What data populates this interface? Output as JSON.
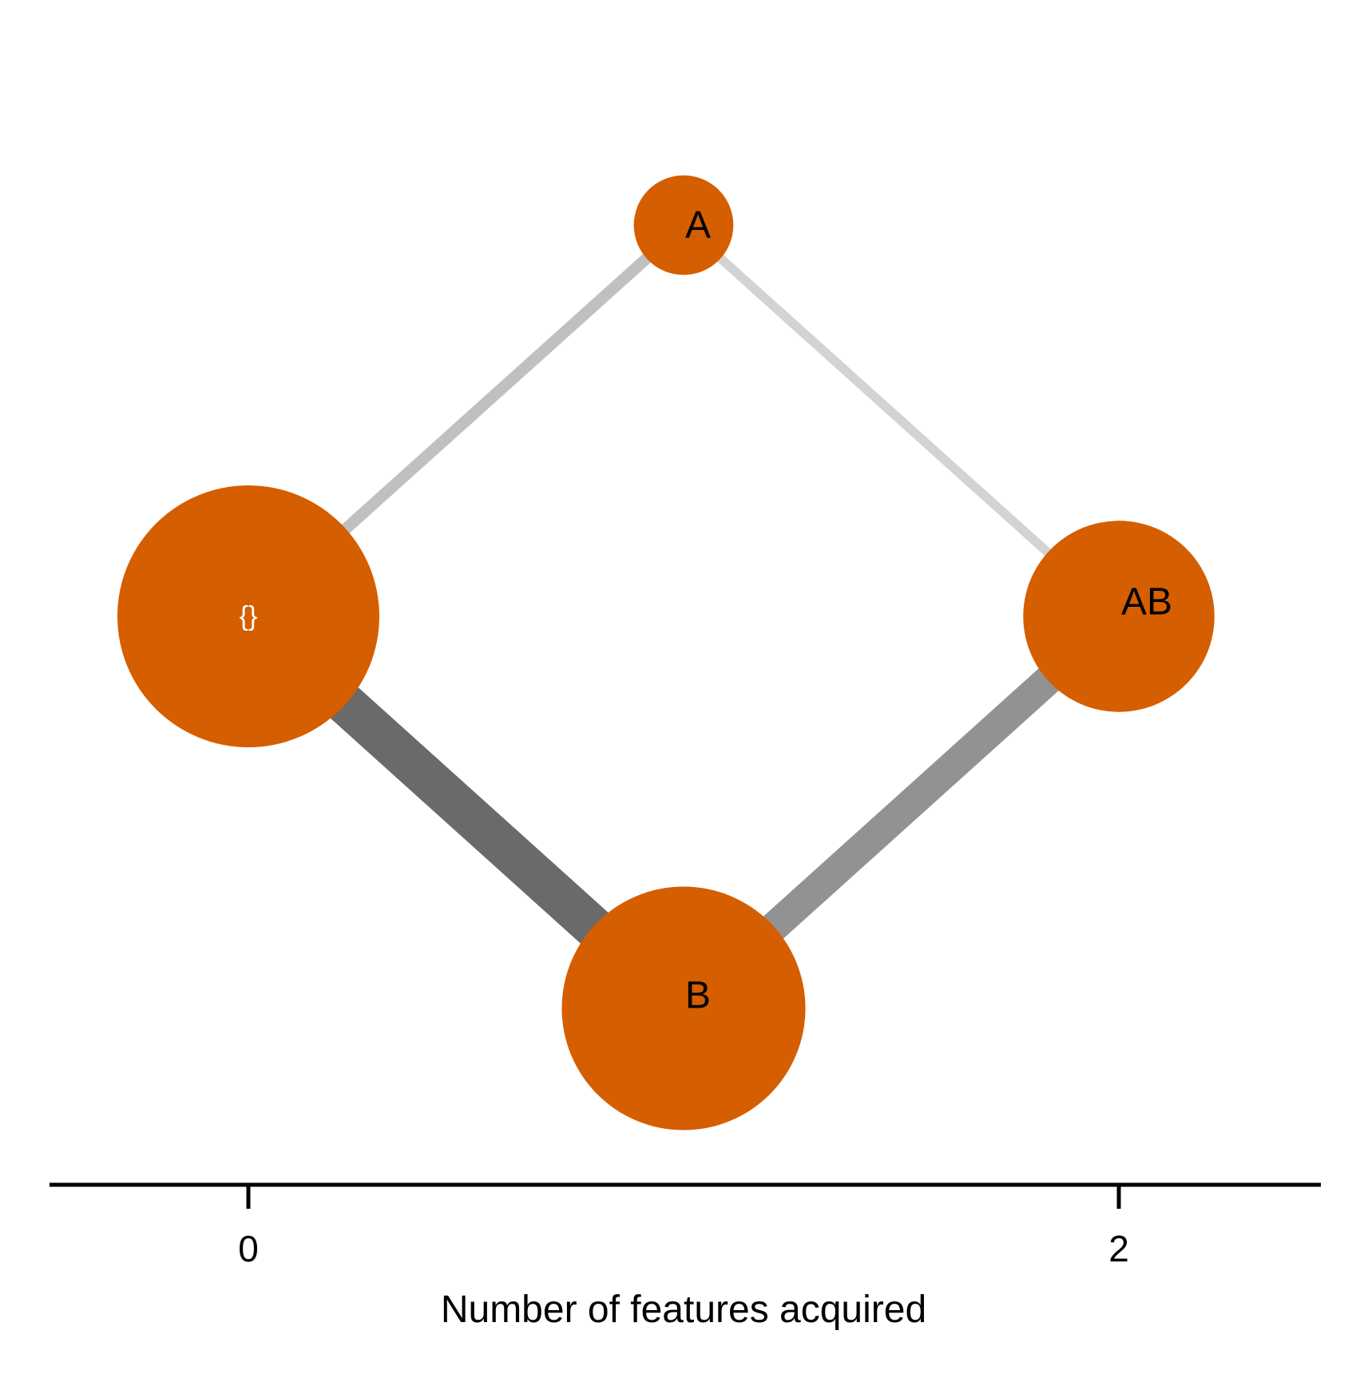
{
  "node_color": "#D55E00",
  "nodes": [
    {
      "id": "empty",
      "label": "{}",
      "features": 0,
      "relative_size": 1.0,
      "label_color": "#ffffff"
    },
    {
      "id": "A",
      "label": "A",
      "features": 1,
      "relative_size": 0.38,
      "label_color": "#000000"
    },
    {
      "id": "B",
      "label": "B",
      "features": 1,
      "relative_size": 0.93,
      "label_color": "#000000"
    },
    {
      "id": "AB",
      "label": "AB",
      "features": 2,
      "relative_size": 0.73,
      "label_color": "#000000"
    }
  ],
  "edges": [
    {
      "from": "empty",
      "to": "A",
      "relative_weight": 0.28,
      "color": "#c0c0c0"
    },
    {
      "from": "A",
      "to": "AB",
      "relative_weight": 0.22,
      "color": "#d3d3d3"
    },
    {
      "from": "empty",
      "to": "B",
      "relative_weight": 1.0,
      "color": "#6a6a6a"
    },
    {
      "from": "B",
      "to": "AB",
      "relative_weight": 0.72,
      "color": "#929292"
    }
  ],
  "x_axis": {
    "title": "Number of features acquired",
    "ticks": [
      {
        "value": 0,
        "label": "0"
      },
      {
        "value": 2,
        "label": "2"
      }
    ]
  }
}
